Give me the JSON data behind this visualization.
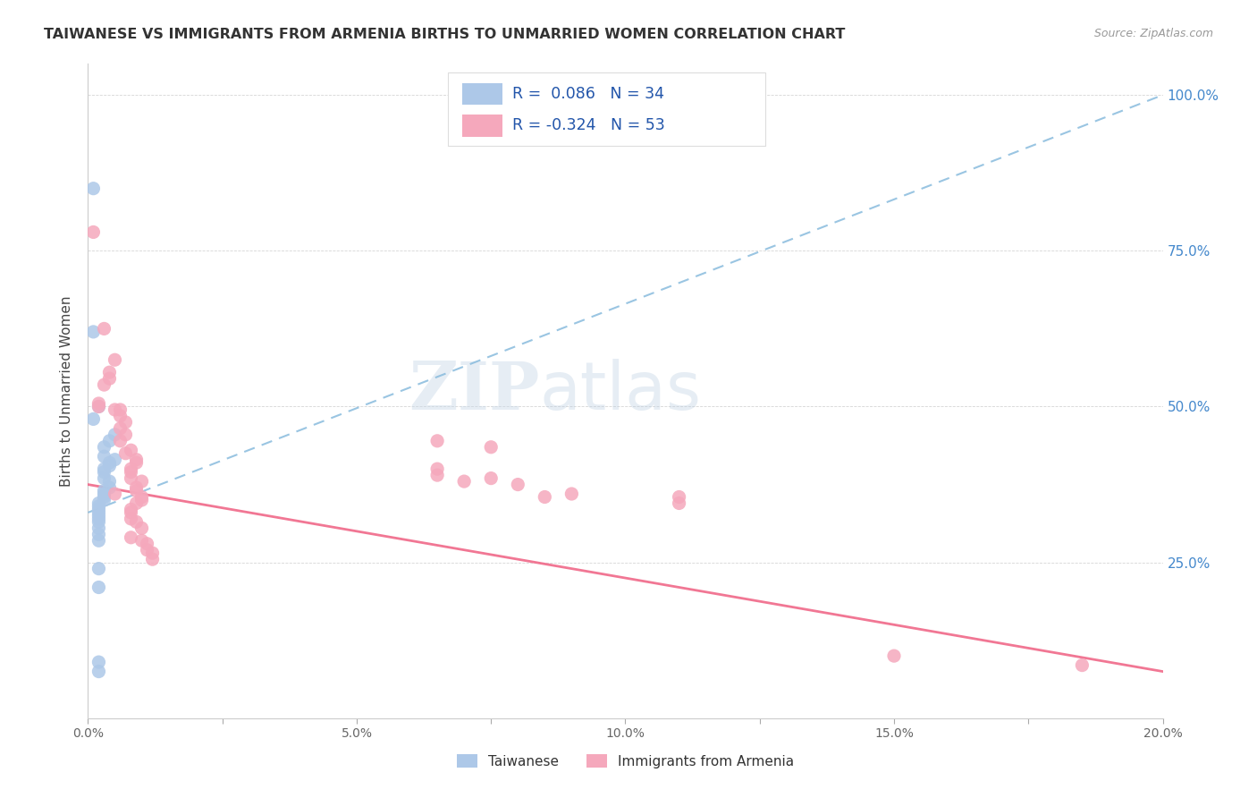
{
  "title": "TAIWANESE VS IMMIGRANTS FROM ARMENIA BIRTHS TO UNMARRIED WOMEN CORRELATION CHART",
  "source": "Source: ZipAtlas.com",
  "ylabel": "Births to Unmarried Women",
  "legend_blue_r": "0.086",
  "legend_blue_n": "34",
  "legend_pink_r": "-0.324",
  "legend_pink_n": "53",
  "legend_label_blue": "Taiwanese",
  "legend_label_pink": "Immigrants from Armenia",
  "watermark_zip": "ZIP",
  "watermark_atlas": "atlas",
  "blue_color": "#adc8e8",
  "pink_color": "#f5a8bc",
  "trend_blue_color": "#88bbdd",
  "trend_pink_color": "#f06888",
  "blue_trend_x0": 0.0,
  "blue_trend_y0": 0.33,
  "blue_trend_x1": 0.2,
  "blue_trend_y1": 1.0,
  "pink_trend_x0": 0.0,
  "pink_trend_y0": 0.375,
  "pink_trend_x1": 0.2,
  "pink_trend_y1": 0.075,
  "blue_dots": [
    [
      0.001,
      0.85
    ],
    [
      0.001,
      0.62
    ],
    [
      0.002,
      0.5
    ],
    [
      0.001,
      0.48
    ],
    [
      0.005,
      0.455
    ],
    [
      0.004,
      0.445
    ],
    [
      0.003,
      0.435
    ],
    [
      0.003,
      0.42
    ],
    [
      0.005,
      0.415
    ],
    [
      0.004,
      0.41
    ],
    [
      0.004,
      0.405
    ],
    [
      0.003,
      0.4
    ],
    [
      0.003,
      0.395
    ],
    [
      0.003,
      0.385
    ],
    [
      0.004,
      0.38
    ],
    [
      0.004,
      0.37
    ],
    [
      0.003,
      0.365
    ],
    [
      0.003,
      0.36
    ],
    [
      0.003,
      0.355
    ],
    [
      0.003,
      0.35
    ],
    [
      0.002,
      0.345
    ],
    [
      0.002,
      0.34
    ],
    [
      0.002,
      0.335
    ],
    [
      0.002,
      0.33
    ],
    [
      0.002,
      0.325
    ],
    [
      0.002,
      0.32
    ],
    [
      0.002,
      0.315
    ],
    [
      0.002,
      0.305
    ],
    [
      0.002,
      0.295
    ],
    [
      0.002,
      0.285
    ],
    [
      0.002,
      0.24
    ],
    [
      0.002,
      0.21
    ],
    [
      0.002,
      0.09
    ],
    [
      0.002,
      0.075
    ]
  ],
  "pink_dots": [
    [
      0.001,
      0.78
    ],
    [
      0.003,
      0.625
    ],
    [
      0.005,
      0.575
    ],
    [
      0.004,
      0.555
    ],
    [
      0.004,
      0.545
    ],
    [
      0.003,
      0.535
    ],
    [
      0.002,
      0.505
    ],
    [
      0.002,
      0.5
    ],
    [
      0.006,
      0.495
    ],
    [
      0.005,
      0.495
    ],
    [
      0.006,
      0.485
    ],
    [
      0.007,
      0.475
    ],
    [
      0.006,
      0.465
    ],
    [
      0.007,
      0.455
    ],
    [
      0.006,
      0.445
    ],
    [
      0.008,
      0.43
    ],
    [
      0.007,
      0.425
    ],
    [
      0.009,
      0.415
    ],
    [
      0.009,
      0.41
    ],
    [
      0.008,
      0.4
    ],
    [
      0.008,
      0.395
    ],
    [
      0.008,
      0.385
    ],
    [
      0.01,
      0.38
    ],
    [
      0.009,
      0.37
    ],
    [
      0.009,
      0.365
    ],
    [
      0.005,
      0.36
    ],
    [
      0.01,
      0.355
    ],
    [
      0.01,
      0.35
    ],
    [
      0.009,
      0.345
    ],
    [
      0.008,
      0.335
    ],
    [
      0.008,
      0.33
    ],
    [
      0.008,
      0.32
    ],
    [
      0.009,
      0.315
    ],
    [
      0.01,
      0.305
    ],
    [
      0.008,
      0.29
    ],
    [
      0.01,
      0.285
    ],
    [
      0.011,
      0.28
    ],
    [
      0.011,
      0.27
    ],
    [
      0.012,
      0.265
    ],
    [
      0.012,
      0.255
    ],
    [
      0.065,
      0.445
    ],
    [
      0.065,
      0.4
    ],
    [
      0.065,
      0.39
    ],
    [
      0.075,
      0.435
    ],
    [
      0.075,
      0.385
    ],
    [
      0.07,
      0.38
    ],
    [
      0.08,
      0.375
    ],
    [
      0.085,
      0.355
    ],
    [
      0.09,
      0.36
    ],
    [
      0.11,
      0.355
    ],
    [
      0.11,
      0.345
    ],
    [
      0.185,
      0.085
    ],
    [
      0.15,
      0.1
    ]
  ],
  "xmin": 0.0,
  "xmax": 0.2,
  "ymin": 0.0,
  "ymax": 1.05,
  "xtick_positions": [
    0.0,
    0.025,
    0.05,
    0.075,
    0.1,
    0.125,
    0.15,
    0.175,
    0.2
  ],
  "xtick_labels": [
    "0.0%",
    "",
    "5.0%",
    "",
    "10.0%",
    "",
    "15.0%",
    "",
    "20.0%"
  ],
  "ytick_right_positions": [
    0.25,
    0.5,
    0.75,
    1.0
  ],
  "ytick_right_labels": [
    "25.0%",
    "50.0%",
    "75.0%",
    "100.0%"
  ]
}
